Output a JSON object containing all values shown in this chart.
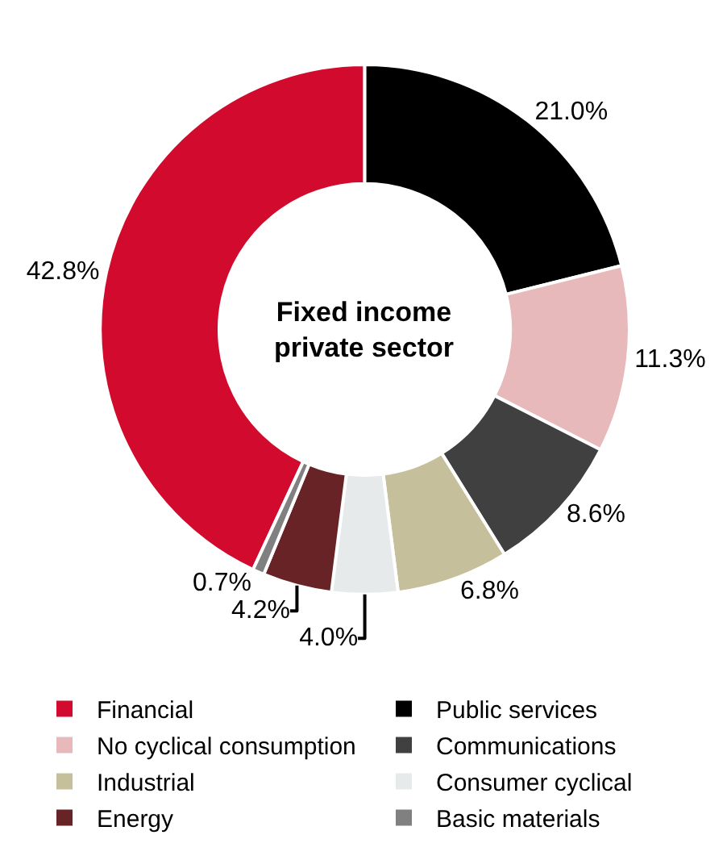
{
  "chart_data": {
    "type": "donut",
    "title": "Fixed income\nprivate sector",
    "categories": [
      "Financial",
      "Public services",
      "No cyclical consumption",
      "Communications",
      "Industrial",
      "Consumer cyclical",
      "Energy",
      "Basic materials"
    ],
    "values": [
      42.8,
      21.0,
      11.3,
      8.6,
      6.8,
      4.0,
      4.2,
      0.7
    ],
    "value_labels": [
      "42.8%",
      "21.0%",
      "11.3%",
      "8.6%",
      "6.8%",
      "4.0%",
      "4.2%",
      "0.7%"
    ],
    "colors": [
      "#d20a2e",
      "#000000",
      "#e8b9bb",
      "#404040",
      "#c6bf9b",
      "#e6eaea",
      "#672325",
      "#808080"
    ],
    "legend": "bottom"
  }
}
